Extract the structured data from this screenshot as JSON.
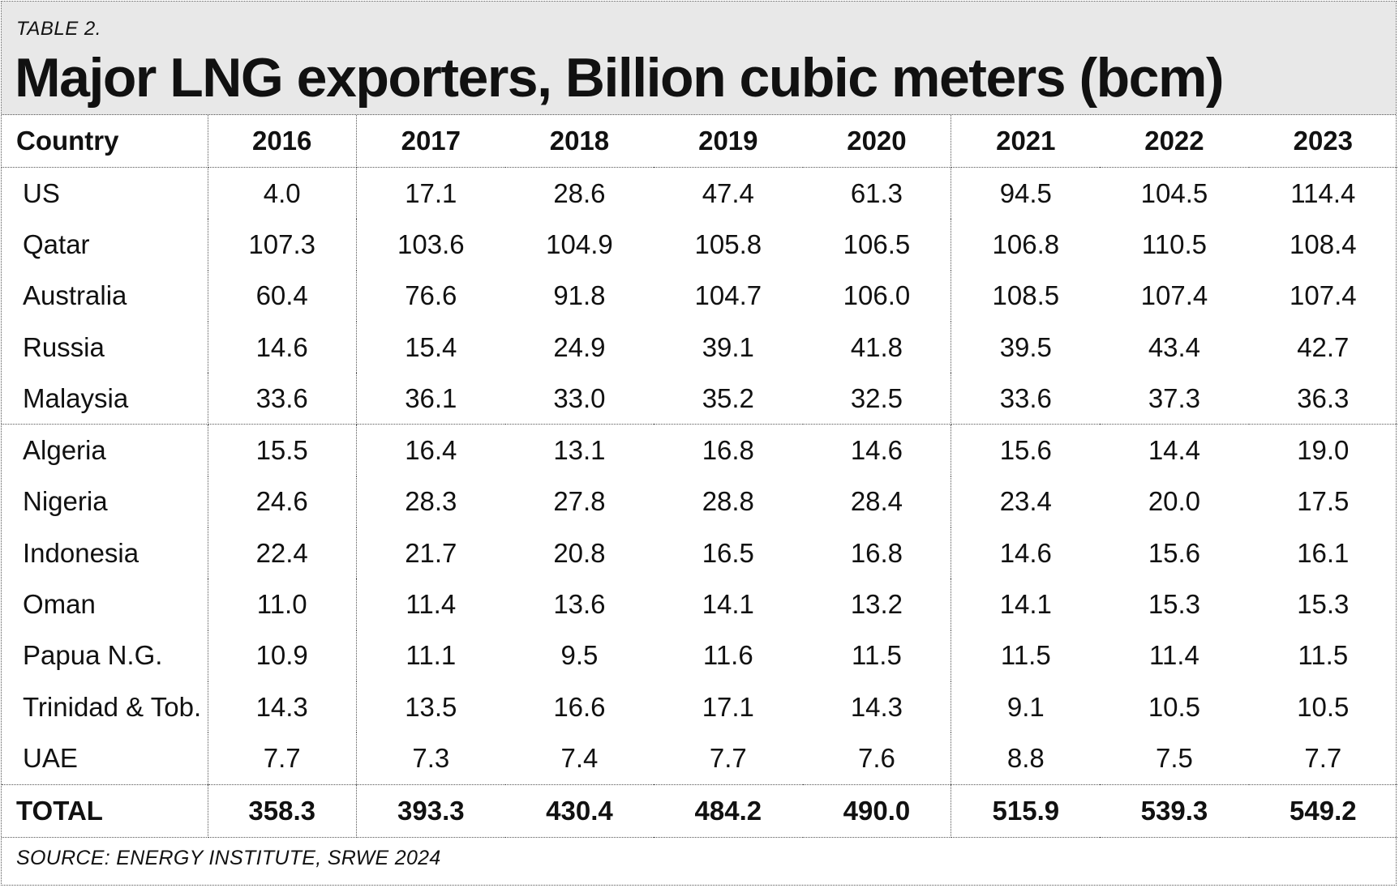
{
  "header": {
    "table_label": "TABLE 2.",
    "title": "Major LNG exporters, Billion cubic meters (bcm)"
  },
  "table": {
    "columns": [
      "Country",
      "2016",
      "2017",
      "2018",
      "2019",
      "2020",
      "2021",
      "2022",
      "2023"
    ],
    "rows": [
      [
        "US",
        "4.0",
        "17.1",
        "28.6",
        "47.4",
        "61.3",
        "94.5",
        "104.5",
        "114.4"
      ],
      [
        "Qatar",
        "107.3",
        "103.6",
        "104.9",
        "105.8",
        "106.5",
        "106.8",
        "110.5",
        "108.4"
      ],
      [
        "Australia",
        "60.4",
        "76.6",
        "91.8",
        "104.7",
        "106.0",
        "108.5",
        "107.4",
        "107.4"
      ],
      [
        "Russia",
        "14.6",
        "15.4",
        "24.9",
        "39.1",
        "41.8",
        "39.5",
        "43.4",
        "42.7"
      ],
      [
        "Malaysia",
        "33.6",
        "36.1",
        "33.0",
        "35.2",
        "32.5",
        "33.6",
        "37.3",
        "36.3"
      ],
      [
        "Algeria",
        "15.5",
        "16.4",
        "13.1",
        "16.8",
        "14.6",
        "15.6",
        "14.4",
        "19.0"
      ],
      [
        "Nigeria",
        "24.6",
        "28.3",
        "27.8",
        "28.8",
        "28.4",
        "23.4",
        "20.0",
        "17.5"
      ],
      [
        "Indonesia",
        "22.4",
        "21.7",
        "20.8",
        "16.5",
        "16.8",
        "14.6",
        "15.6",
        "16.1"
      ],
      [
        "Oman",
        "11.0",
        "11.4",
        "13.6",
        "14.1",
        "13.2",
        "14.1",
        "15.3",
        "15.3"
      ],
      [
        "Papua N.G.",
        "10.9",
        "11.1",
        "9.5",
        "11.6",
        "11.5",
        "11.5",
        "11.4",
        "11.5"
      ],
      [
        "Trinidad & Tob.",
        "14.3",
        "13.5",
        "16.6",
        "17.1",
        "14.3",
        "9.1",
        "10.5",
        "10.5"
      ],
      [
        "UAE",
        "7.7",
        "7.3",
        "7.4",
        "7.7",
        "7.6",
        "8.8",
        "7.5",
        "7.7"
      ]
    ],
    "total": [
      "TOTAL",
      "358.3",
      "393.3",
      "430.4",
      "484.2",
      "490.0",
      "515.9",
      "539.3",
      "549.2"
    ]
  },
  "footer": {
    "source": "SOURCE: ENERGY INSTITUTE, SRWE 2024"
  }
}
